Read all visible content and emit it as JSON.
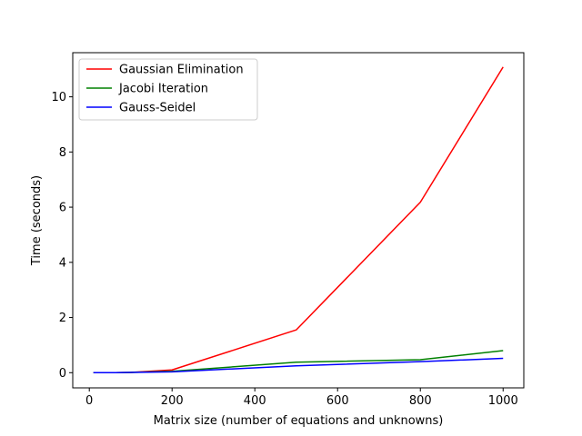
{
  "chart_data": {
    "type": "line",
    "title": "",
    "xlabel": "Matrix size (number of equations and unknowns)",
    "ylabel": "Time (seconds)",
    "xlim": [
      -40,
      1050
    ],
    "ylim": [
      -0.55,
      11.6
    ],
    "xticks": [
      0,
      200,
      400,
      600,
      800,
      1000
    ],
    "yticks": [
      0,
      2,
      4,
      6,
      8,
      10
    ],
    "grid": false,
    "legend_position": "top-left",
    "series": [
      {
        "name": "Gaussian Elimination",
        "color": "#ff0000",
        "x": [
          10,
          50,
          100,
          200,
          500,
          800,
          1000
        ],
        "y": [
          0.0,
          0.0,
          0.01,
          0.1,
          1.55,
          6.18,
          11.08
        ]
      },
      {
        "name": "Jacobi Iteration",
        "color": "#008000",
        "x": [
          10,
          50,
          100,
          200,
          500,
          800,
          1000
        ],
        "y": [
          0.0,
          0.0,
          0.01,
          0.05,
          0.38,
          0.47,
          0.8
        ]
      },
      {
        "name": "Gauss-Seidel",
        "color": "#0000ff",
        "x": [
          10,
          50,
          100,
          200,
          500,
          800,
          1000
        ],
        "y": [
          0.0,
          0.0,
          0.01,
          0.03,
          0.25,
          0.4,
          0.52
        ]
      }
    ]
  }
}
